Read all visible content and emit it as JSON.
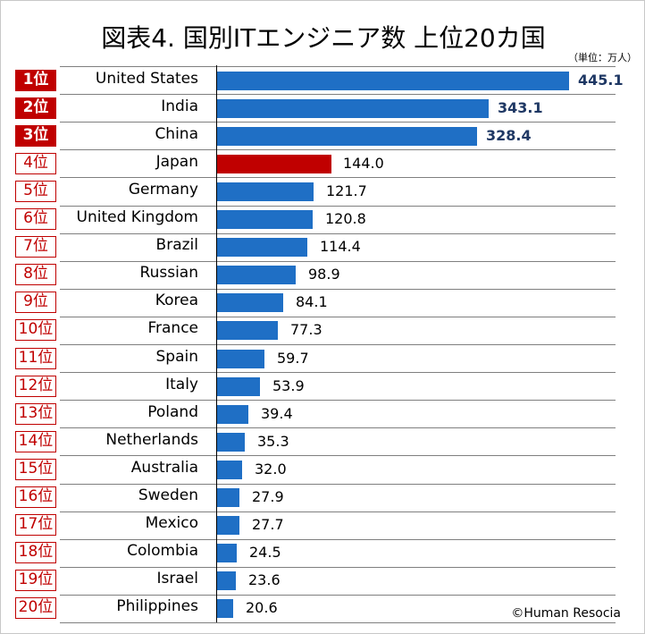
{
  "title": "図表4. 国別ITエンジニア数 上位20カ国",
  "unit_note": "（単位：万人）",
  "source": "©Human Resocia",
  "colors": {
    "default_bar": "#1f6fc5",
    "highlight_bar": "#c00000",
    "rank_red": "#c00000",
    "top_value_text": "#1f3864"
  },
  "chart_data": {
    "type": "bar",
    "orientation": "horizontal",
    "title": "図表4. 国別ITエンジニア数 上位20カ国",
    "unit": "（単位：万人）",
    "xlim": [
      0,
      445.1
    ],
    "grid": false,
    "highlight": "Japan",
    "ranks": [
      "1位",
      "2位",
      "3位",
      "4位",
      "5位",
      "6位",
      "7位",
      "8位",
      "9位",
      "10位",
      "11位",
      "12位",
      "13位",
      "14位",
      "15位",
      "16位",
      "17位",
      "18位",
      "19位",
      "20位"
    ],
    "categories": [
      "United States",
      "India",
      "China",
      "Japan",
      "Germany",
      "United Kingdom",
      "Brazil",
      "Russian",
      "Korea",
      "France",
      "Spain",
      "Italy",
      "Poland",
      "Netherlands",
      "Australia",
      "Sweden",
      "Mexico",
      "Colombia",
      "Israel",
      "Philippines"
    ],
    "values": [
      445.1,
      343.1,
      328.4,
      144.0,
      121.7,
      120.8,
      114.4,
      98.9,
      84.1,
      77.3,
      59.7,
      53.9,
      39.4,
      35.3,
      32.0,
      27.9,
      27.7,
      24.5,
      23.6,
      20.6
    ],
    "value_labels": [
      "445.1",
      "343.1",
      "328.4",
      "144.0",
      "121.7",
      "120.8",
      "114.4",
      "98.9",
      "84.1",
      "77.3",
      "59.7",
      "53.9",
      "39.4",
      "35.3",
      "32.0",
      "27.9",
      "27.7",
      "24.5",
      "23.6",
      "20.6"
    ]
  }
}
